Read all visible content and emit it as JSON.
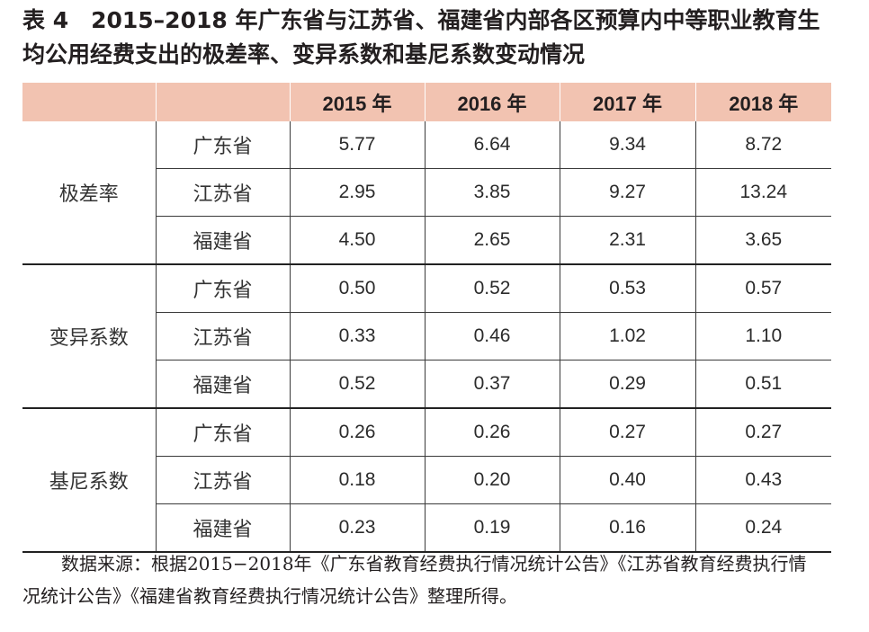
{
  "title": {
    "lines": [
      "表 4　2015–2018 年广东省与江苏省、福建省内部各区预算内中等职业教育生",
      "均公用经费支出的极差率、变异系数和基尼系数变动情况"
    ]
  },
  "table": {
    "years": [
      "2015 年",
      "2016 年",
      "2017 年",
      "2018 年"
    ],
    "groups": [
      {
        "label": "极差率",
        "rows": [
          {
            "province": "广东省",
            "values": [
              "5.77",
              "6.64",
              "9.34",
              "8.72"
            ]
          },
          {
            "province": "江苏省",
            "values": [
              "2.95",
              "3.85",
              "9.27",
              "13.24"
            ]
          },
          {
            "province": "福建省",
            "values": [
              "4.50",
              "2.65",
              "2.31",
              "3.65"
            ]
          }
        ]
      },
      {
        "label": "变异系数",
        "rows": [
          {
            "province": "广东省",
            "values": [
              "0.50",
              "0.52",
              "0.53",
              "0.57"
            ]
          },
          {
            "province": "江苏省",
            "values": [
              "0.33",
              "0.46",
              "1.02",
              "1.10"
            ]
          },
          {
            "province": "福建省",
            "values": [
              "0.52",
              "0.37",
              "0.29",
              "0.51"
            ]
          }
        ]
      },
      {
        "label": "基尼系数",
        "rows": [
          {
            "province": "广东省",
            "values": [
              "0.26",
              "0.26",
              "0.27",
              "0.27"
            ]
          },
          {
            "province": "江苏省",
            "values": [
              "0.18",
              "0.20",
              "0.40",
              "0.43"
            ]
          },
          {
            "province": "福建省",
            "values": [
              "0.23",
              "0.19",
              "0.16",
              "0.24"
            ]
          }
        ]
      }
    ]
  },
  "source_note": {
    "lines": [
      "数据来源：根据2015−2018年《广东省教育经费执行情况统计公告》《江苏省教育经费执行情",
      "况统计公告》《福建省教育经费执行情况统计公告》整理所得。"
    ]
  },
  "colors": {
    "header_background": "#f2c3b1",
    "text": "#231f20",
    "rule": "#222222"
  }
}
